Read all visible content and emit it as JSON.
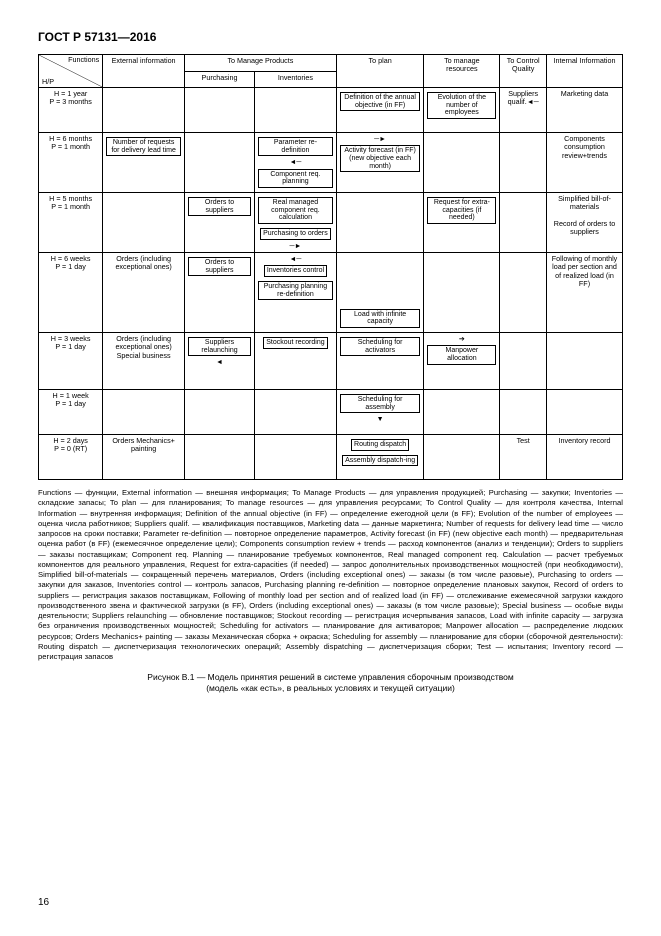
{
  "doc_title": "ГОСТ Р 57131—2016",
  "page_number": "16",
  "table": {
    "header": {
      "diag_fn": "Functions",
      "diag_hp": "H/P",
      "ext": "External information",
      "manage_products": "To Manage Products",
      "purchasing": "Purchasing",
      "inventories": "Inventories",
      "plan": "To plan",
      "resources": "To manage resources",
      "quality": "To Control Quality",
      "internal": "Internal Information"
    },
    "rows": [
      {
        "label": "H = 1 year\nP = 3 months",
        "plan": "Definition of the annual objective (in FF)",
        "res": "Evolution of the number of employees",
        "qc": "Suppliers qualif.",
        "int": "Marketing data"
      },
      {
        "label": "H = 6 months\nP = 1 month",
        "ext": "Number of requests for delivery lead time",
        "inv": "Parameter re-definition",
        "inv2": "Component req. planning",
        "plan": "Activity forecast (in FF) (new objective each month)",
        "int": "Components consumption review+trends"
      },
      {
        "label": "H = 5 months\nP = 1 month",
        "purch": "Orders to suppliers",
        "inv": "Real managed component req. calculation",
        "inv2": "Purchasing to orders",
        "res": "Request for extra-capacities (if needed)",
        "int": "Simplified bill-of-materials",
        "int2": "Record of orders to suppliers"
      },
      {
        "label": "H = 6 weeks\nP = 1 day",
        "ext": "Orders (including exceptional ones)",
        "purch": "Orders to suppliers",
        "inv": "Inventories control",
        "inv2": "Purchasing planning re-definition",
        "plan": "Load with infinite capacity",
        "int": "Following of monthly load per section and of realized load (in FF)"
      },
      {
        "label": "H = 3 weeks\nP = 1 day",
        "ext": "Orders (including exceptional ones) Special business",
        "purch": "Suppliers relaunching",
        "inv": "Stockout recording",
        "plan": "Scheduling for activators",
        "res": "Manpower allocation"
      },
      {
        "label": "H = 1 week\nP = 1 day",
        "plan": "Scheduling for assembly"
      },
      {
        "label": "H = 2 days\nP = 0 (RT)",
        "ext": "Orders Mechanics+ painting",
        "plan1": "Routing dispatch",
        "plan2": "Assembly dispatch-ing",
        "qc": "Test",
        "int": "Inventory record"
      }
    ]
  },
  "glossary": "Functions — функции, External information — внешняя информация; To Manage Products — для управления продукцией; Purchasing — закупки; Inventories — складские запасы; To plan — для планирования; To manage resources — для управления ресурсами; To Control Quality — для контроля качества, Internal Information — внутренняя информация; Definition of the annual objective (in FF) — определение ежегодной цели (в FF); Evolution of the number of employees — оценка числа работников; Suppliers qualif. — квалификация поставщиков, Marketing data — данные маркетинга; Number of requests for delivery lead time — число запросов на сроки поставки; Parameter re-definition — повторное определение параметров, Activity forecast (in FF) (new objective each month) — предварительная оценка работ (в FF) (ежемесячное определение цели); Components consumption review + trends — расход компонентов (анализ и тенденции); Orders to suppliers — заказы поставщикам; Component req. Planning — планирование требуемых компонентов, Real managed component req. Calculation — расчет требуемых компонентов для реального управления, Request for extra-capacities (if needed) — запрос дополнительных производственных мощностей (при необходимости), Simplified bill-of-materials — сокращенный перечень материалов, Orders (including exceptional ones) — заказы (в том числе разовые), Purchasing to orders — закупки для заказов, Inventories control — контроль запасов, Purchasing planning re-definition — повторное определение плановых закупок, Record of orders to suppliers — регистрация заказов поставщикам, Following of monthly load per section and of realized load (in FF) — отслеживание ежемесячной загрузки каждого производственного звена и фактической загрузки (в FF), Orders (including exceptional ones) — заказы (в том числе разовые); Special business — особые виды деятельности; Suppliers relaunching — обновление поставщиков; Stockout recording — регистрация исчерпывания запасов, Load with infinite capacity — загрузка без ограничения производственных мощностей; Scheduling for activators — планирование для активаторов; Manpower allocation — распределение людских ресурсов; Orders Mechanics+ painting — заказы Механическая сборка + окраска; Scheduling for assembly — планирование для сборки (сборочной деятельности): Routing dispatch — диспетчеризация технологических операций; Assembly dispatching — диспетчеризация сборки; Test — испытания; Inventory record — регистрация запасов",
  "caption_line1": "Рисунок В.1 — Модель принятия решений в системе управления сборочным производством",
  "caption_line2": "(модель «как есть», в реальных условиях и текущей ситуации)"
}
